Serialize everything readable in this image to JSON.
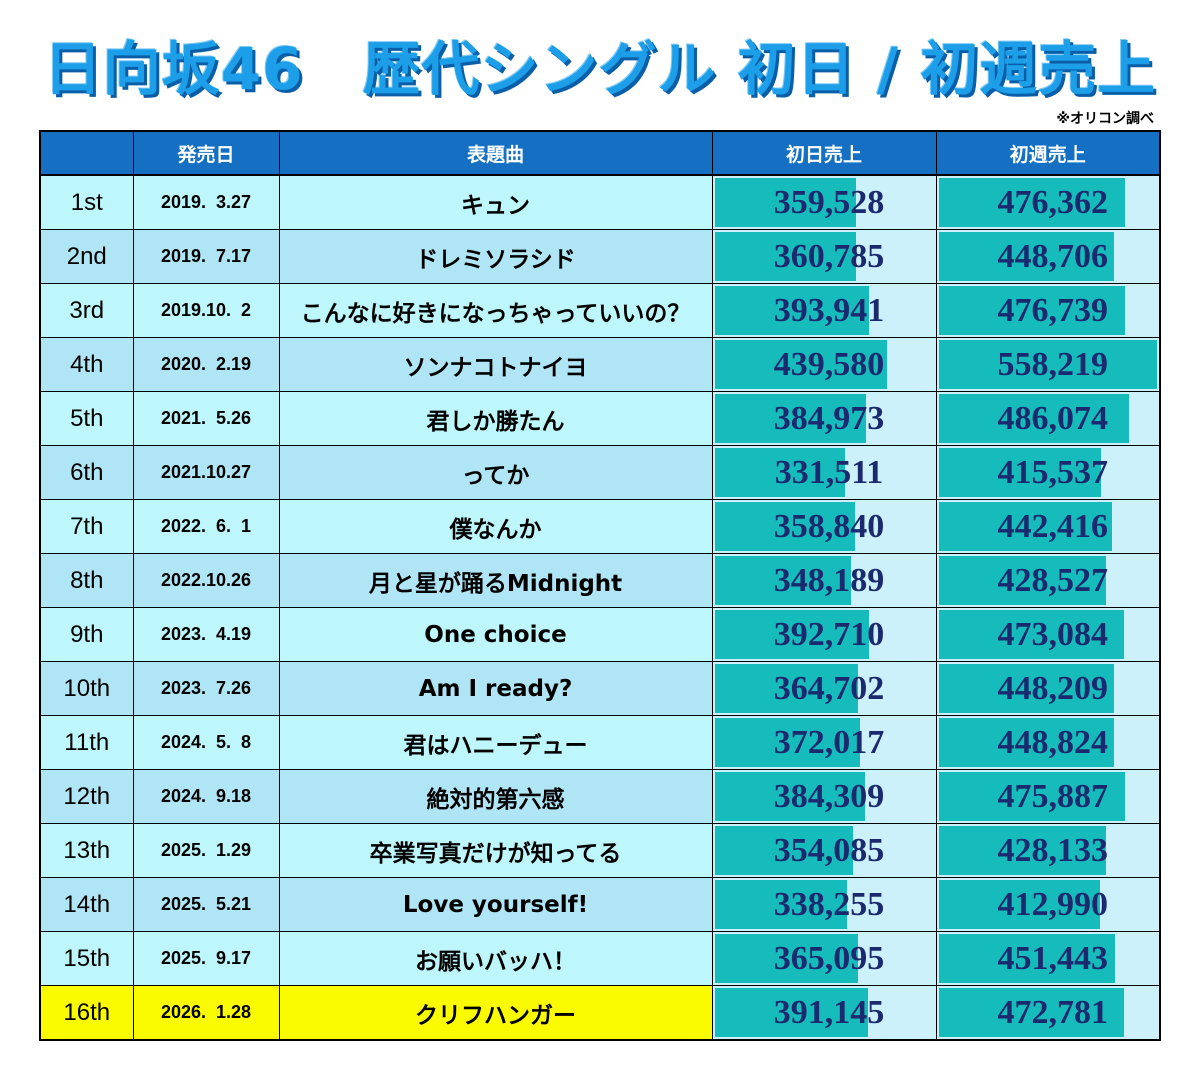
{
  "title": "日向坂46　歴代シングル 初日 / 初週売上",
  "note": "※オリコン調べ",
  "columns": {
    "no": "",
    "date": "発売日",
    "song": "表題曲",
    "first_day": "初日売上",
    "first_week": "初週売上"
  },
  "colors": {
    "header": "#1570c3",
    "title": "#1c9ee8",
    "bar": "#16bcbc",
    "row_odd": "#bdf6fb",
    "row_even": "#b0e5f5",
    "highlight": "#fbfb00"
  },
  "chart_data": {
    "type": "table",
    "title": "日向坂46　歴代シングル 初日 / 初週売上",
    "series_scale_max": 558219,
    "rows": [
      {
        "no": "1st",
        "date": "2019.  3.27",
        "song": "キュン",
        "first_day": "359,528",
        "first_week": "476,362",
        "first_day_value": 359528,
        "first_week_value": 476362
      },
      {
        "no": "2nd",
        "date": "2019.  7.17",
        "song": "ドレミソラシド",
        "first_day": "360,785",
        "first_week": "448,706",
        "first_day_value": 360785,
        "first_week_value": 448706
      },
      {
        "no": "3rd",
        "date": "2019.10.  2",
        "song": "こんなに好きになっちゃっていいの？",
        "first_day": "393,941",
        "first_week": "476,739",
        "first_day_value": 393941,
        "first_week_value": 476739
      },
      {
        "no": "4th",
        "date": "2020.  2.19",
        "song": "ソンナコトナイヨ",
        "first_day": "439,580",
        "first_week": "558,219",
        "first_day_value": 439580,
        "first_week_value": 558219
      },
      {
        "no": "5th",
        "date": "2021.  5.26",
        "song": "君しか勝たん",
        "first_day": "384,973",
        "first_week": "486,074",
        "first_day_value": 384973,
        "first_week_value": 486074
      },
      {
        "no": "6th",
        "date": "2021.10.27",
        "song": "ってか",
        "first_day": "331,511",
        "first_week": "415,537",
        "first_day_value": 331511,
        "first_week_value": 415537
      },
      {
        "no": "7th",
        "date": "2022.  6.  1",
        "song": "僕なんか",
        "first_day": "358,840",
        "first_week": "442,416",
        "first_day_value": 358840,
        "first_week_value": 442416
      },
      {
        "no": "8th",
        "date": "2022.10.26",
        "song": "月と星が踊るMidnight",
        "first_day": "348,189",
        "first_week": "428,527",
        "first_day_value": 348189,
        "first_week_value": 428527
      },
      {
        "no": "9th",
        "date": "2023.  4.19",
        "song": "One choice",
        "first_day": "392,710",
        "first_week": "473,084",
        "first_day_value": 392710,
        "first_week_value": 473084
      },
      {
        "no": "10th",
        "date": "2023.  7.26",
        "song": "Am I ready?",
        "first_day": "364,702",
        "first_week": "448,209",
        "first_day_value": 364702,
        "first_week_value": 448209
      },
      {
        "no": "11th",
        "date": "2024.  5.  8",
        "song": "君はハニーデュー",
        "first_day": "372,017",
        "first_week": "448,824",
        "first_day_value": 372017,
        "first_week_value": 448824
      },
      {
        "no": "12th",
        "date": "2024.  9.18",
        "song": "絶対的第六感",
        "first_day": "384,309",
        "first_week": "475,887",
        "first_day_value": 384309,
        "first_week_value": 475887
      },
      {
        "no": "13th",
        "date": "2025.  1.29",
        "song": "卒業写真だけが知ってる",
        "first_day": "354,085",
        "first_week": "428,133",
        "first_day_value": 354085,
        "first_week_value": 428133
      },
      {
        "no": "14th",
        "date": "2025.  5.21",
        "song": "Love yourself!",
        "first_day": "338,255",
        "first_week": "412,990",
        "first_day_value": 338255,
        "first_week_value": 412990
      },
      {
        "no": "15th",
        "date": "2025.  9.17",
        "song": "お願いバッハ！",
        "first_day": "365,095",
        "first_week": "451,443",
        "first_day_value": 365095,
        "first_week_value": 451443
      },
      {
        "no": "16th",
        "date": "2026.  1.28",
        "song": "クリフハンガー",
        "first_day": "391,145",
        "first_week": "472,781",
        "first_day_value": 391145,
        "first_week_value": 472781,
        "highlight": true
      }
    ]
  }
}
